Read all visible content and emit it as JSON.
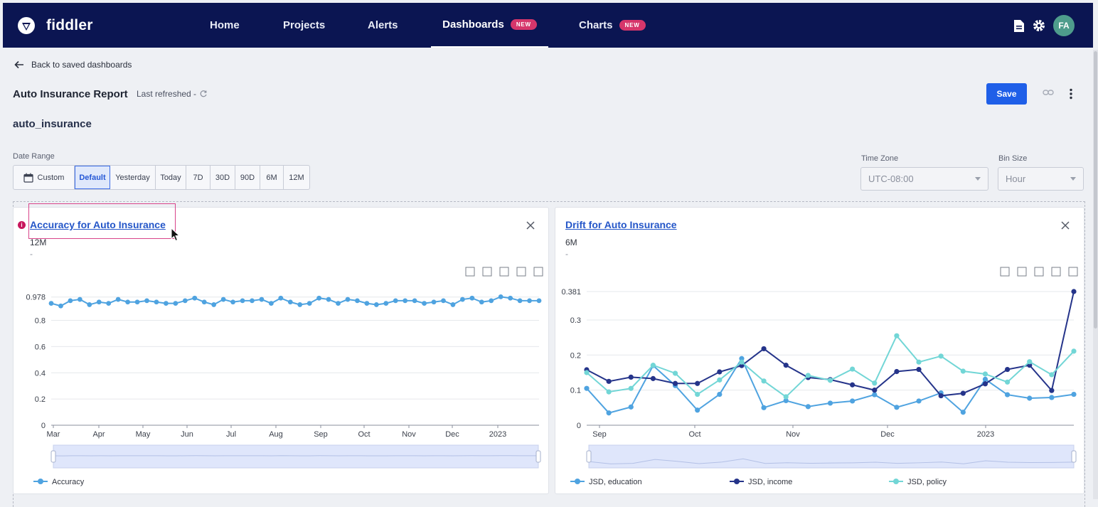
{
  "app": {
    "name": "fiddler"
  },
  "nav": [
    {
      "label": "Home"
    },
    {
      "label": "Projects"
    },
    {
      "label": "Alerts"
    },
    {
      "label": "Dashboards",
      "badge": "NEW",
      "active": true
    },
    {
      "label": "Charts",
      "badge": "NEW"
    }
  ],
  "user": {
    "initials": "FA"
  },
  "page": {
    "back_label": "Back to saved dashboards",
    "title": "Auto Insurance Report",
    "last_refreshed": "Last refreshed -",
    "save_label": "Save",
    "model_name": "auto_insurance"
  },
  "filters": {
    "date_range_label": "Date Range",
    "custom_label": "Custom",
    "options": [
      "Default",
      "Yesterday",
      "Today",
      "7D",
      "30D",
      "90D",
      "6M",
      "12M"
    ],
    "selected": "Default",
    "timezone_label": "Time Zone",
    "timezone_value": "UTC-08:00",
    "binsize_label": "Bin Size",
    "binsize_value": "Hour"
  },
  "colors": {
    "navy": "#0b1552",
    "accent": "#1f5fe8",
    "series_education": "#4fa3e0",
    "series_income": "#25348a",
    "series_policy": "#72d6d6"
  },
  "cards": [
    {
      "title": "Accuracy for Auto Insurance",
      "sub1": "12M",
      "sub2": "-"
    },
    {
      "title": "Drift for Auto Insurance",
      "sub1": "6M",
      "sub2": "-"
    }
  ],
  "chart_data": [
    {
      "type": "line",
      "title": "Accuracy for Auto Insurance",
      "x_ticks": [
        "Mar",
        "Apr",
        "May",
        "Jun",
        "Jul",
        "Aug",
        "Sep",
        "Oct",
        "Nov",
        "Dec",
        "2023"
      ],
      "y_ticks": [
        "0",
        "0.2",
        "0.4",
        "0.6",
        "0.8",
        "0.978"
      ],
      "ylim": [
        0,
        1.02
      ],
      "legend_placement": "bottom",
      "series": [
        {
          "name": "Accuracy",
          "values": [
            0.93,
            0.91,
            0.95,
            0.96,
            0.92,
            0.94,
            0.93,
            0.96,
            0.94,
            0.94,
            0.95,
            0.94,
            0.93,
            0.93,
            0.95,
            0.97,
            0.94,
            0.92,
            0.96,
            0.94,
            0.95,
            0.95,
            0.96,
            0.93,
            0.97,
            0.94,
            0.92,
            0.93,
            0.97,
            0.96,
            0.93,
            0.96,
            0.95,
            0.93,
            0.92,
            0.93,
            0.95,
            0.95,
            0.95,
            0.93,
            0.94,
            0.95,
            0.92,
            0.96,
            0.97,
            0.94,
            0.95,
            0.98,
            0.97,
            0.95,
            0.95,
            0.95
          ]
        }
      ]
    },
    {
      "type": "line",
      "title": "Drift for Auto Insurance",
      "x_ticks": [
        "Sep",
        "Oct",
        "Nov",
        "Dec",
        "2023"
      ],
      "y_ticks": [
        "0",
        "0.1",
        "0.2",
        "0.3",
        "0.381"
      ],
      "ylim": [
        0,
        0.381
      ],
      "legend_placement": "bottom",
      "series": [
        {
          "name": "JSD, education",
          "values": [
            0.105,
            0.035,
            0.052,
            0.17,
            0.113,
            0.043,
            0.088,
            0.19,
            0.05,
            0.07,
            0.053,
            0.063,
            0.069,
            0.087,
            0.051,
            0.069,
            0.092,
            0.037,
            0.131,
            0.087,
            0.077,
            0.079,
            0.088
          ]
        },
        {
          "name": "JSD, income",
          "values": [
            0.158,
            0.125,
            0.137,
            0.133,
            0.119,
            0.119,
            0.152,
            0.17,
            0.218,
            0.171,
            0.136,
            0.13,
            0.115,
            0.1,
            0.153,
            0.159,
            0.084,
            0.091,
            0.118,
            0.159,
            0.171,
            0.099,
            0.381
          ]
        },
        {
          "name": "JSD, policy",
          "values": [
            0.15,
            0.095,
            0.105,
            0.171,
            0.148,
            0.088,
            0.129,
            0.18,
            0.126,
            0.081,
            0.142,
            0.128,
            0.16,
            0.12,
            0.255,
            0.18,
            0.197,
            0.154,
            0.146,
            0.123,
            0.181,
            0.144,
            0.211
          ]
        }
      ]
    }
  ]
}
